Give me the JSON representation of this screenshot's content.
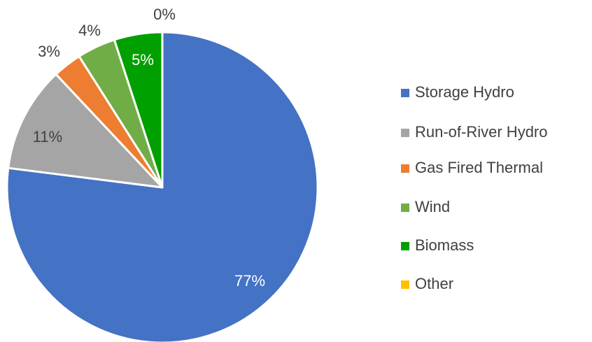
{
  "chart_data": {
    "type": "pie",
    "categories": [
      "Storage Hydro",
      "Run-of-River Hydro",
      "Gas Fired Thermal",
      "Wind",
      "Biomass",
      "Other"
    ],
    "values": [
      77,
      11,
      3,
      4,
      5,
      0
    ],
    "value_labels": [
      "77%",
      "11%",
      "3%",
      "4%",
      "5%",
      "0%"
    ],
    "colors": [
      "#4472c4",
      "#a5a5a5",
      "#ed7d31",
      "#70ad47",
      "#00a000",
      "#ffc000"
    ],
    "legend": "right"
  }
}
